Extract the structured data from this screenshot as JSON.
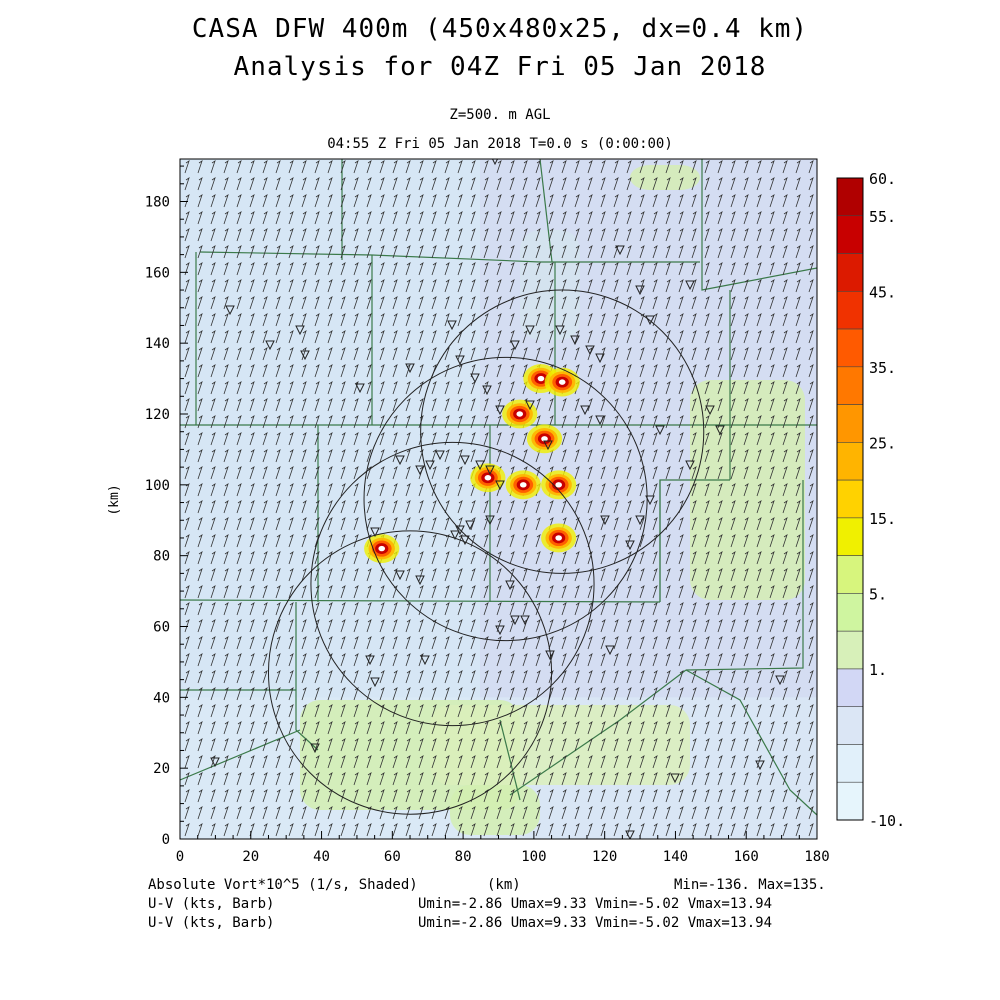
{
  "header": {
    "title_line1": "CASA DFW 400m (450x480x25, dx=0.4 km)",
    "title_line2": "Analysis for 04Z Fri 05 Jan 2018",
    "level": "Z=500. m AGL",
    "valid_time": "04:55 Z Fri 05 Jan 2018    T=0.0 s (0:00:00)"
  },
  "footer": {
    "field_label": "Absolute Vort*10^5 (1/s, Shaded)",
    "xunits": "(km)",
    "minmax": "Min=-136. Max=135.",
    "wind1_label": "U-V (kts, Barb)",
    "wind1_stats": "Umin=-2.86 Umax=9.33 Vmin=-5.02 Vmax=13.94",
    "wind2_label": "U-V (kts, Barb)",
    "wind2_stats": "Umin=-2.86 Umax=9.33 Vmin=-5.02 Vmax=13.94"
  },
  "chart_data": {
    "type": "heatmap",
    "xlabel": "",
    "ylabel": "(km)",
    "xlim": [
      0,
      180
    ],
    "ylim": [
      0,
      192
    ],
    "xticks": [
      "0",
      "20",
      "40",
      "60",
      "80",
      "100",
      "120",
      "140",
      "160",
      "180"
    ],
    "yticks": [
      "0",
      "20",
      "40",
      "60",
      "80",
      "100",
      "120",
      "140",
      "160",
      "180"
    ],
    "colorbar": {
      "labels": [
        "60.",
        "55.",
        "45.",
        "35.",
        "25.",
        "15.",
        "5.",
        "1.",
        "-10."
      ],
      "colors": [
        "#b00000",
        "#c80000",
        "#dc1a00",
        "#f03200",
        "#ff5a00",
        "#ff7800",
        "#ff9600",
        "#ffb400",
        "#ffd200",
        "#f0f000",
        "#d7f57d",
        "#cff5a0",
        "#d7f0b9",
        "#d2d7f5",
        "#dbe6f5",
        "#e1f0fa",
        "#e6f5fc"
      ]
    },
    "radar_rings": [
      {
        "cx": 65,
        "cy": 47,
        "r": 40
      },
      {
        "cx": 77,
        "cy": 72,
        "r": 40
      },
      {
        "cx": 92,
        "cy": 96,
        "r": 40
      },
      {
        "cx": 108,
        "cy": 115,
        "r": 40
      }
    ],
    "vorticity_maxima": [
      {
        "x": 96,
        "y": 120,
        "value": 60
      },
      {
        "x": 103,
        "y": 113,
        "value": 55
      },
      {
        "x": 102,
        "y": 130,
        "value": 50
      },
      {
        "x": 87,
        "y": 102,
        "value": 45
      },
      {
        "x": 97,
        "y": 100,
        "value": 50
      },
      {
        "x": 107,
        "y": 100,
        "value": 45
      },
      {
        "x": 107,
        "y": 85,
        "value": 40
      },
      {
        "x": 57,
        "y": 82,
        "value": 45
      },
      {
        "x": 108,
        "y": 129,
        "value": 35
      }
    ],
    "wind": {
      "umin": -2.86,
      "umax": 9.33,
      "vmin": -5.02,
      "vmax": 13.94,
      "units": "kts"
    }
  }
}
